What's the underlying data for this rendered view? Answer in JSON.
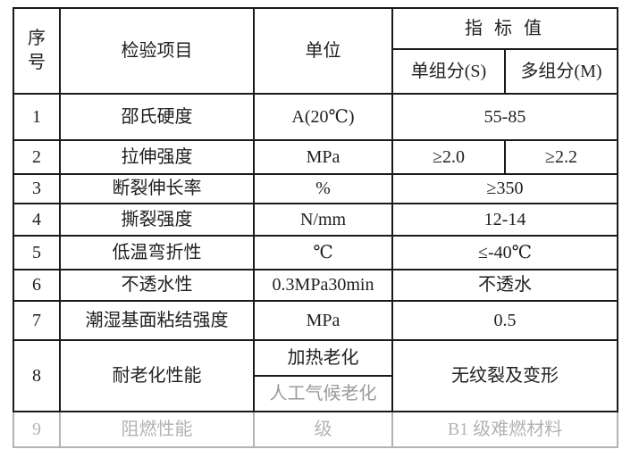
{
  "colors": {
    "text": "#1f1f1f",
    "border": "#1a1a1a",
    "semi_faded_text": "#8c8c8c",
    "faded_text": "#b3b3b3"
  },
  "table": {
    "header": {
      "no": "序\n号",
      "item": "检验项目",
      "unit": "单位",
      "index": "指 标 值",
      "single": "单组分(S)",
      "multi": "多组分(M)"
    },
    "rows": [
      {
        "no": "1",
        "item": "邵氏硬度",
        "unit": "A(20℃)",
        "value": "55-85"
      },
      {
        "no": "2",
        "item": "拉伸强度",
        "unit": "MPa",
        "single": "≥2.0",
        "multi": "≥2.2"
      },
      {
        "no": "3",
        "item": "断裂伸长率",
        "unit": "%",
        "value": "≥350"
      },
      {
        "no": "4",
        "item": "撕裂强度",
        "unit": "N/mm",
        "value": "12-14"
      },
      {
        "no": "5",
        "item": "低温弯折性",
        "unit": "℃",
        "value": "≤-40℃"
      },
      {
        "no": "6",
        "item": "不透水性",
        "unit": "0.3MPa30min",
        "value": "不透水"
      },
      {
        "no": "7",
        "item": "潮湿基面粘结强度",
        "unit": "MPa",
        "value": "0.5"
      },
      {
        "no": "8",
        "item": "耐老化性能",
        "unit_top": "加热老化",
        "unit_bottom": "人工气候老化",
        "value": "无纹裂及变形"
      },
      {
        "no": "9",
        "item": "阻燃性能",
        "unit": "级",
        "value": "B1 级难燃材料"
      }
    ]
  }
}
